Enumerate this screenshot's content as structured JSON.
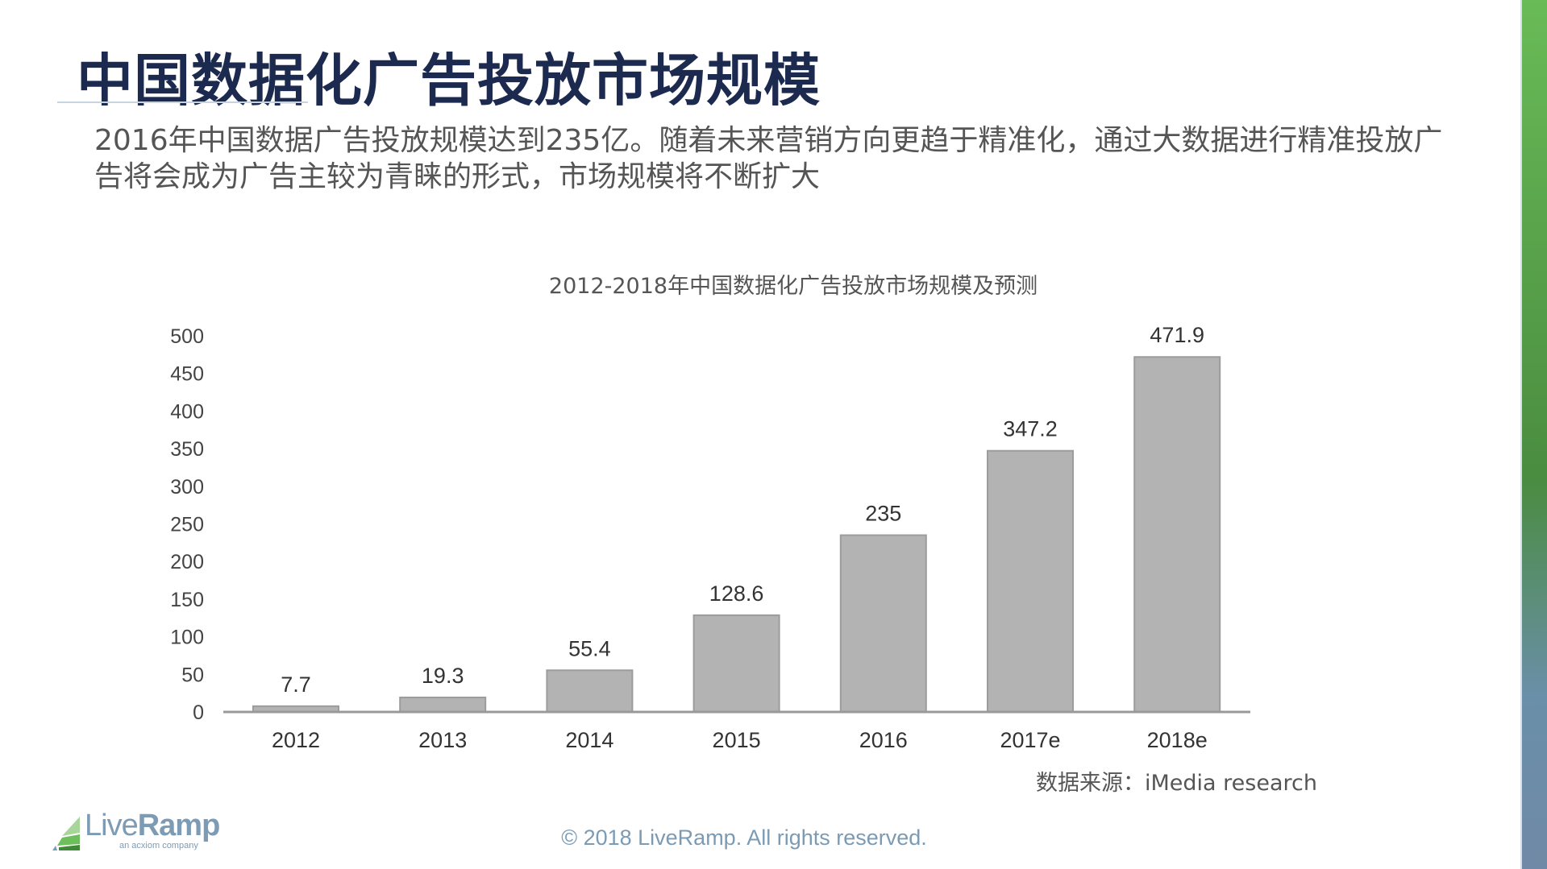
{
  "page": {
    "title": "中国数据化广告投放市场规模",
    "description": "2016年中国数据广告投放规模达到235亿。随着未来营销方向更趋于精准化，通过大数据进行精准投放广告将会成为广告主较为青睐的形式，市场规模将不断扩大",
    "source": "数据来源：iMedia research",
    "copyright": "© 2018 LiveRamp. All rights reserved.",
    "logo": {
      "name": "LiveRamp",
      "tagline": "an acxiom company"
    },
    "colors": {
      "accent_green": "#69bb57",
      "title": "#1c2a4f",
      "bar": "#b3b3b3"
    }
  },
  "chart_data": {
    "type": "bar",
    "title": "2012-2018年中国数据化广告投放市场规模及预测",
    "categories": [
      "2012",
      "2013",
      "2014",
      "2015",
      "2016",
      "2017e",
      "2018e"
    ],
    "values": [
      7.7,
      19.3,
      55.4,
      128.6,
      235,
      347.2,
      471.9
    ],
    "data_labels": [
      "7.7",
      "19.3",
      "55.4",
      "128.6",
      "235",
      "347.2",
      "471.9"
    ],
    "yticks": [
      0,
      50,
      100,
      150,
      200,
      250,
      300,
      350,
      400,
      450,
      500
    ],
    "ylim": [
      0,
      500
    ],
    "xlabel": "",
    "ylabel": "",
    "grid": false,
    "legend": "none"
  }
}
